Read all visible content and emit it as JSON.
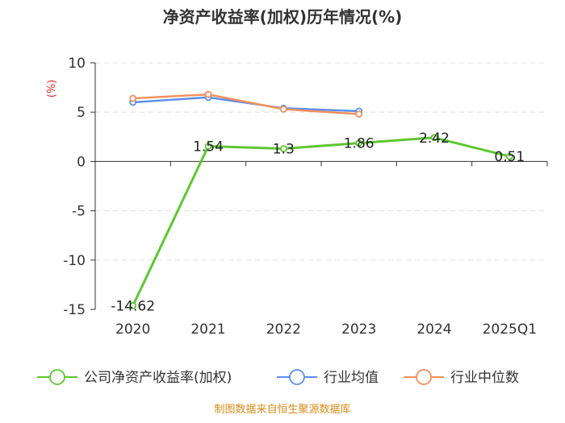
{
  "chart_data": {
    "type": "line",
    "title": "净资产收益率(加权)历年情况(%)",
    "ylabel": "(%)",
    "categories": [
      "2020",
      "2021",
      "2022",
      "2023",
      "2024",
      "2025Q1"
    ],
    "ylim": [
      -15,
      10
    ],
    "yticks": [
      10,
      5,
      0,
      -5,
      -10,
      -15
    ],
    "grid": true,
    "legend_position": "bottom",
    "series": [
      {
        "name": "公司净资产收益率(加权)",
        "color": "#5ec731",
        "values": [
          -14.62,
          1.54,
          1.3,
          1.86,
          2.42,
          0.51
        ],
        "labels": [
          "-14.62",
          "1.54",
          "1.3",
          "1.86",
          "2.42",
          "0.51"
        ]
      },
      {
        "name": "行业均值",
        "color": "#5b8ff0",
        "values": [
          6.0,
          6.5,
          5.4,
          5.1,
          null,
          null
        ]
      },
      {
        "name": "行业中位数",
        "color": "#f5905a",
        "values": [
          6.4,
          6.8,
          5.3,
          4.8,
          null,
          null
        ]
      }
    ],
    "source": "制图数据来自恒生聚源数据库"
  }
}
